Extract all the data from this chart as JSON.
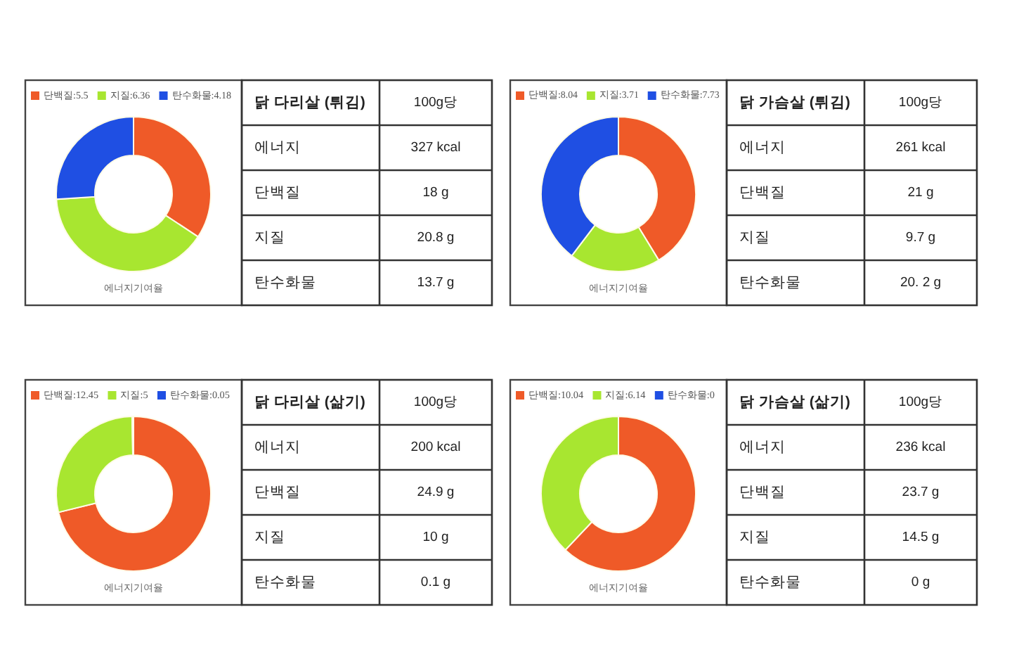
{
  "chart_data": [
    {
      "type": "donut",
      "categories": [
        "단백질:5.5",
        "지질:6.36",
        "탄수화물:4.18"
      ],
      "values": [
        5.5,
        6.36,
        4.18
      ],
      "colors": [
        "#ef5a28",
        "#a8e630",
        "#1f4fe3"
      ],
      "legend": "top",
      "annotations": [
        "에너지기여율"
      ]
    },
    {
      "type": "other",
      "annotations": [
        "닭 다리살 (튀김)",
        "100g당",
        "에너지",
        "327 kcal",
        "단백질",
        "18 g",
        "지질",
        "20.8 g",
        "탄수화물",
        "13.7 g"
      ]
    },
    {
      "type": "donut",
      "categories": [
        "단백질:8.04",
        "지질:3.71",
        "탄수화물:7.73"
      ],
      "values": [
        8.04,
        3.71,
        7.73
      ],
      "colors": [
        "#ef5a28",
        "#a8e630",
        "#1f4fe3"
      ],
      "legend": "top",
      "annotations": [
        "에너지기여율"
      ]
    },
    {
      "type": "other",
      "annotations": [
        "닭 가슴살 (튀김)",
        "100g당",
        "에너지",
        "261 kcal",
        "단백질",
        "21 g",
        "지질",
        "9.7 g",
        "탄수화물",
        "20. 2 g"
      ]
    },
    {
      "type": "donut",
      "categories": [
        "단백질:12.45",
        "지질:5",
        "탄수화물:0.05"
      ],
      "values": [
        12.45,
        5,
        0.05
      ],
      "colors": [
        "#ef5a28",
        "#a8e630",
        "#1f4fe3"
      ],
      "legend": "top",
      "annotations": [
        "에너지기여율"
      ]
    },
    {
      "type": "other",
      "annotations": [
        "닭 다리살 (삶기)",
        "100g당",
        "에너지",
        "200 kcal",
        "단백질",
        "24.9 g",
        "지질",
        "10 g",
        "탄수화물",
        "0.1 g"
      ]
    },
    {
      "type": "donut",
      "categories": [
        "단백질:10.04",
        "지질:6.14",
        "탄수화물:0"
      ],
      "values": [
        10.04,
        6.14,
        0
      ],
      "colors": [
        "#ef5a28",
        "#a8e630",
        "#1f4fe3"
      ],
      "legend": "top",
      "annotations": [
        "에너지기여율"
      ]
    },
    {
      "type": "other",
      "annotations": [
        "닭 가슴살 (삶기)",
        "100g당",
        "에너지",
        "236 kcal",
        "단백질",
        "23.7 g",
        "지질",
        "14.5 g",
        "탄수화물",
        "0 g"
      ]
    }
  ]
}
